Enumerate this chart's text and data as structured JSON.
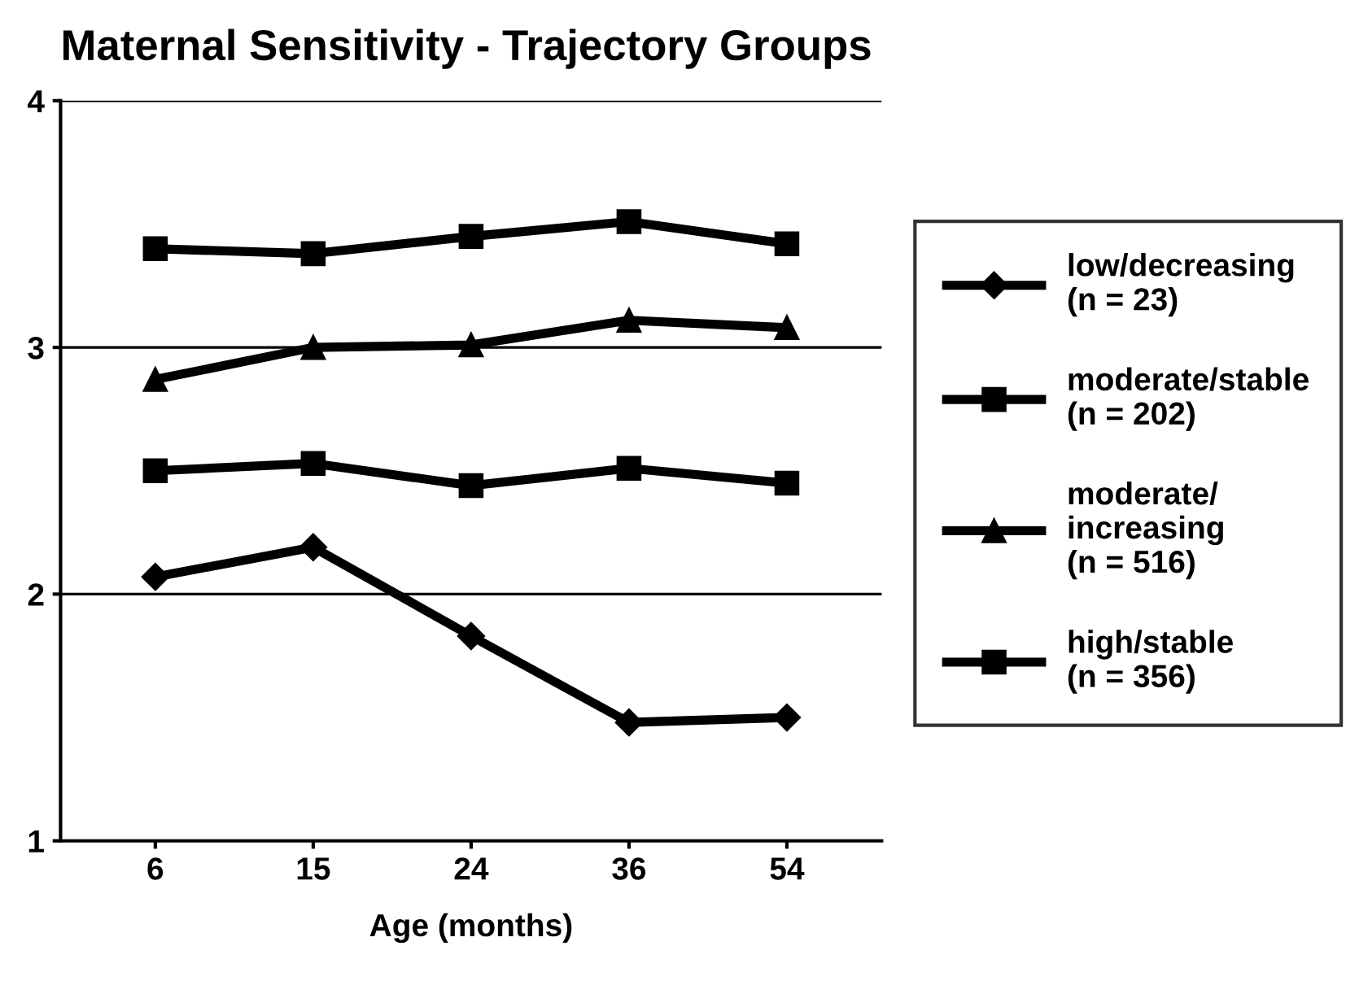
{
  "chart_data": {
    "type": "line",
    "title": "Maternal Sensitivity - Trajectory Groups",
    "xlabel": "Age (months)",
    "categories": [
      "6",
      "15",
      "24",
      "36",
      "54"
    ],
    "series": [
      {
        "name": "low/decreasing\n(n = 23)",
        "color": "#000000",
        "marker": "diamond",
        "values": [
          2.07,
          2.19,
          1.83,
          1.48,
          1.5
        ]
      },
      {
        "name": "moderate/stable\n(n = 202)",
        "color": "#000000",
        "marker": "square",
        "values": [
          2.5,
          2.53,
          2.44,
          2.51,
          2.45
        ]
      },
      {
        "name": "moderate/\nincreasing\n(n = 516)",
        "color": "#000000",
        "marker": "triangle",
        "values": [
          2.87,
          3.0,
          3.01,
          3.11,
          3.08
        ]
      },
      {
        "name": "high/stable\n(n = 356)",
        "color": "#000000",
        "marker": "square",
        "values": [
          3.4,
          3.38,
          3.45,
          3.51,
          3.42
        ]
      }
    ],
    "ylim": [
      1,
      4
    ],
    "yticks": [
      1,
      2,
      3,
      4
    ],
    "grid": "y",
    "legend": "right",
    "line_style": "solid"
  }
}
